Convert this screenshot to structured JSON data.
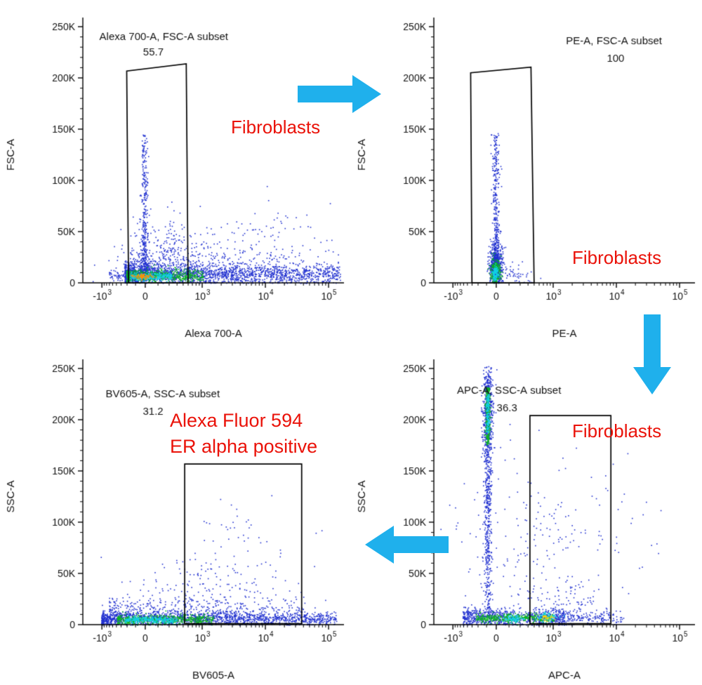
{
  "figure": {
    "background": "#ffffff",
    "arrow_color": "#1fb0ec",
    "annotation_color": "#ea1209",
    "axis_color": "#000000",
    "text_color": "#111111",
    "density_palette": {
      "low": "#2030cf",
      "mid": "#0cb41e",
      "high": "#12cfe6",
      "peak": "#ff9000",
      "max": "#ffd800"
    }
  },
  "annotations": {
    "fibroblasts_1": "Fibroblasts",
    "fibroblasts_2": "Fibroblasts",
    "fibroblasts_3": "Fibroblasts",
    "er_line1": "Alexa Fluor 594",
    "er_line2": "ER alpha positive"
  },
  "chart_data": [
    {
      "type": "scatter",
      "name": "alexa700-vs-fsc",
      "xlabel": "Alexa 700-A",
      "ylabel": "FSC-A",
      "x_scale": "biexponential",
      "y_scale": "linear",
      "x_ticks": [
        {
          "label": "-10^3",
          "pos": 0.073
        },
        {
          "label": "0",
          "pos": 0.239
        },
        {
          "label": "10^3",
          "pos": 0.457
        },
        {
          "label": "10^4",
          "pos": 0.699
        },
        {
          "label": "10^5",
          "pos": 0.941
        }
      ],
      "y_ticks": [
        {
          "label": "0",
          "value": 0
        },
        {
          "label": "50K",
          "value": 50000
        },
        {
          "label": "100K",
          "value": 100000
        },
        {
          "label": "150K",
          "value": 150000
        },
        {
          "label": "200K",
          "value": 200000
        },
        {
          "label": "250K",
          "value": 250000
        }
      ],
      "y_max": 250000,
      "gate": {
        "label": "Alexa 700-A, FSC-A subset",
        "percent": "55.7",
        "polygon": [
          [
            0.175,
            0.0
          ],
          [
            0.168,
            0.827
          ],
          [
            0.396,
            0.855
          ],
          [
            0.403,
            0.0
          ]
        ],
        "label_anchor": [
          0.31,
          0.948
        ],
        "percent_anchor": [
          0.27,
          0.888
        ]
      },
      "populations": [
        {
          "desc": "autofluorescence streak at x~0 up to ~140K FSC",
          "kind": "vstreak",
          "cx": 0.235,
          "sx": 0.006,
          "y0": 0.03,
          "y1": 0.58,
          "skew": 2.2,
          "n": 420,
          "color": "#2030cf"
        },
        {
          "desc": "diffuse low-mid cloud",
          "kind": "gauss",
          "cx": 0.33,
          "cy": 0.12,
          "sx": 0.1,
          "sy": 0.07,
          "n": 260,
          "color": "#2030cf"
        },
        {
          "desc": "main debris band along FSC~10K across full Alexa700 range",
          "kind": "hband",
          "x0": 0.16,
          "x1": 1.0,
          "cy": 0.035,
          "sy": 0.02,
          "skew": 1.7,
          "n": 1900,
          "color": "#2030cf"
        },
        {
          "desc": "band halo",
          "kind": "hband",
          "x0": 0.18,
          "x1": 0.85,
          "cy": 0.075,
          "sy": 0.035,
          "skew": 1.5,
          "n": 300,
          "color": "#2030cf"
        },
        {
          "desc": "sparse right-side scatter",
          "kind": "gauss",
          "cx": 0.72,
          "cy": 0.13,
          "sx": 0.16,
          "sy": 0.09,
          "n": 140,
          "color": "#2030cf"
        },
        {
          "desc": "left shoulder of band",
          "kind": "hband",
          "x0": 0.1,
          "x1": 0.18,
          "cy": 0.03,
          "sy": 0.015,
          "skew": 1.0,
          "n": 60,
          "color": "#2030cf"
        },
        {
          "desc": "dense green core of band",
          "kind": "hband",
          "x0": 0.165,
          "x1": 0.46,
          "cy": 0.03,
          "sy": 0.013,
          "skew": 1.3,
          "n": 520,
          "color": "#0cb41e"
        },
        {
          "desc": "cyan hotspot",
          "kind": "hband",
          "x0": 0.18,
          "x1": 0.34,
          "cy": 0.028,
          "sy": 0.008,
          "skew": 1.2,
          "n": 260,
          "color": "#12cfe6"
        },
        {
          "desc": "hottest density core near origin",
          "kind": "gauss",
          "cx": 0.225,
          "cy": 0.027,
          "sx": 0.018,
          "sy": 0.005,
          "n": 80,
          "color": "#ff9000"
        }
      ]
    },
    {
      "type": "scatter",
      "name": "pe-vs-fsc",
      "xlabel": "PE-A",
      "ylabel": "FSC-A",
      "x_scale": "biexponential",
      "y_scale": "linear",
      "x_ticks": [
        {
          "label": "-10^3",
          "pos": 0.073
        },
        {
          "label": "0",
          "pos": 0.239
        },
        {
          "label": "10^3",
          "pos": 0.457
        },
        {
          "label": "10^4",
          "pos": 0.699
        },
        {
          "label": "10^5",
          "pos": 0.941
        }
      ],
      "y_ticks": [
        {
          "label": "0",
          "value": 0
        },
        {
          "label": "50K",
          "value": 50000
        },
        {
          "label": "100K",
          "value": 100000
        },
        {
          "label": "150K",
          "value": 150000
        },
        {
          "label": "200K",
          "value": 200000
        },
        {
          "label": "250K",
          "value": 250000
        }
      ],
      "y_max": 250000,
      "gate": {
        "label": "PE-A, FSC-A subset",
        "percent": "100",
        "polygon": [
          [
            0.146,
            0.0
          ],
          [
            0.141,
            0.82
          ],
          [
            0.372,
            0.842
          ],
          [
            0.384,
            0.0
          ]
        ],
        "label_anchor": [
          0.69,
          0.932
        ],
        "percent_anchor": [
          0.696,
          0.862
        ]
      },
      "populations": [
        {
          "desc": "PE-negative streak at x~0 up to ~140K FSC",
          "kind": "vstreak",
          "cx": 0.235,
          "sx": 0.0065,
          "y0": 0.06,
          "y1": 0.58,
          "skew": 2.0,
          "n": 330,
          "color": "#2030cf"
        },
        {
          "desc": "main compact blob near origin",
          "kind": "gauss",
          "cx": 0.236,
          "cy": 0.07,
          "sx": 0.013,
          "sy": 0.045,
          "n": 520,
          "color": "#2030cf"
        },
        {
          "desc": "green core of blob",
          "kind": "gauss",
          "cx": 0.234,
          "cy": 0.045,
          "sx": 0.009,
          "sy": 0.022,
          "n": 300,
          "color": "#0cb41e"
        },
        {
          "desc": "cyan hotspot of blob",
          "kind": "gauss",
          "cx": 0.234,
          "cy": 0.038,
          "sx": 0.0055,
          "sy": 0.012,
          "n": 150,
          "color": "#12cfe6"
        },
        {
          "desc": "slight PE spillover at low FSC",
          "kind": "gauss",
          "cx": 0.3,
          "cy": 0.035,
          "sx": 0.045,
          "sy": 0.025,
          "n": 60,
          "color": "#2030cf"
        },
        {
          "desc": "rare high-FSC events",
          "kind": "vstreak",
          "cx": 0.237,
          "sx": 0.008,
          "y0": 0.35,
          "y1": 0.6,
          "skew": 1.0,
          "n": 40,
          "color": "#2030cf"
        }
      ]
    },
    {
      "type": "scatter",
      "name": "bv605-vs-ssc",
      "xlabel": "BV605-A",
      "ylabel": "SSC-A",
      "x_scale": "biexponential",
      "y_scale": "linear",
      "x_ticks": [
        {
          "label": "-10^3",
          "pos": 0.073
        },
        {
          "label": "0",
          "pos": 0.239
        },
        {
          "label": "10^3",
          "pos": 0.457
        },
        {
          "label": "10^4",
          "pos": 0.699
        },
        {
          "label": "10^5",
          "pos": 0.941
        }
      ],
      "y_ticks": [
        {
          "label": "0",
          "value": 0
        },
        {
          "label": "50K",
          "value": 50000
        },
        {
          "label": "100K",
          "value": 100000
        },
        {
          "label": "150K",
          "value": 150000
        },
        {
          "label": "200K",
          "value": 200000
        },
        {
          "label": "250K",
          "value": 250000
        }
      ],
      "y_max": 250000,
      "gate": {
        "label": "BV605-A, SSC-A subset",
        "percent": "31.2",
        "polygon": [
          [
            0.39,
            0.004
          ],
          [
            0.39,
            0.627
          ],
          [
            0.838,
            0.627
          ],
          [
            0.838,
            0.004
          ]
        ],
        "label_anchor": [
          0.306,
          0.888
        ],
        "percent_anchor": [
          0.269,
          0.818
        ]
      },
      "populations": [
        {
          "desc": "low-SSC band across full BV605 range",
          "kind": "hband",
          "x0": 0.07,
          "x1": 0.97,
          "cy": 0.025,
          "sy": 0.014,
          "skew": 1.35,
          "n": 1500,
          "color": "#2030cf"
        },
        {
          "desc": "band halo",
          "kind": "hband",
          "x0": 0.1,
          "x1": 0.85,
          "cy": 0.06,
          "sy": 0.03,
          "skew": 1.4,
          "n": 420,
          "color": "#2030cf"
        },
        {
          "desc": "green dense stretch of band",
          "kind": "hband",
          "x0": 0.13,
          "x1": 0.5,
          "cy": 0.022,
          "sy": 0.01,
          "skew": 1.15,
          "n": 520,
          "color": "#0cb41e"
        },
        {
          "desc": "cyan hotspot of band",
          "kind": "hband",
          "x0": 0.16,
          "x1": 0.36,
          "cy": 0.02,
          "sy": 0.006,
          "skew": 1.1,
          "n": 240,
          "color": "#12cfe6"
        },
        {
          "desc": "sparse events above band",
          "kind": "gauss",
          "cx": 0.5,
          "cy": 0.16,
          "sx": 0.16,
          "sy": 0.09,
          "n": 150,
          "color": "#2030cf"
        },
        {
          "desc": "rare in-gate higher-SSC events",
          "kind": "gauss",
          "cx": 0.6,
          "cy": 0.3,
          "sx": 0.1,
          "sy": 0.12,
          "n": 40,
          "color": "#2030cf"
        }
      ]
    },
    {
      "type": "scatter",
      "name": "apc-vs-ssc",
      "xlabel": "APC-A",
      "ylabel": "SSC-A",
      "x_scale": "biexponential",
      "y_scale": "linear",
      "x_ticks": [
        {
          "label": "-10^3",
          "pos": 0.073
        },
        {
          "label": "0",
          "pos": 0.239
        },
        {
          "label": "10^3",
          "pos": 0.457
        },
        {
          "label": "10^4",
          "pos": 0.699
        },
        {
          "label": "10^5",
          "pos": 0.941
        }
      ],
      "y_ticks": [
        {
          "label": "0",
          "value": 0
        },
        {
          "label": "50K",
          "value": 50000
        },
        {
          "label": "100K",
          "value": 100000
        },
        {
          "label": "150K",
          "value": 150000
        },
        {
          "label": "200K",
          "value": 200000
        },
        {
          "label": "250K",
          "value": 250000
        }
      ],
      "y_max": 250000,
      "gate": {
        "label": "APC-A, SSC-A subset",
        "percent": "36.3",
        "polygon": [
          [
            0.368,
            0.004
          ],
          [
            0.368,
            0.816
          ],
          [
            0.678,
            0.816
          ],
          [
            0.678,
            0.004
          ]
        ],
        "label_anchor": [
          0.288,
          0.901
        ],
        "percent_anchor": [
          0.28,
          0.832
        ]
      },
      "populations": [
        {
          "desc": "APC-negative vertical streak spanning full SSC range",
          "kind": "vstreak",
          "cx": 0.205,
          "sx": 0.008,
          "y0": 0.03,
          "y1": 0.97,
          "skew": 0.8,
          "n": 650,
          "color": "#2030cf"
        },
        {
          "desc": "dense top cluster of streak ~200K SSC",
          "kind": "gauss",
          "cx": 0.206,
          "cy": 0.84,
          "sx": 0.011,
          "sy": 0.09,
          "n": 320,
          "color": "#2030cf"
        },
        {
          "desc": "green segment at top of streak",
          "kind": "vstreak",
          "cx": 0.205,
          "sx": 0.0045,
          "y0": 0.7,
          "y1": 0.93,
          "skew": 0.9,
          "n": 260,
          "color": "#0cb41e"
        },
        {
          "desc": "cyan segment at top of streak",
          "kind": "vstreak",
          "cx": 0.205,
          "sx": 0.003,
          "y0": 0.75,
          "y1": 0.9,
          "skew": 1.0,
          "n": 130,
          "color": "#12cfe6"
        },
        {
          "desc": "low-SSC band",
          "kind": "hband",
          "x0": 0.11,
          "x1": 0.5,
          "cy": 0.03,
          "sy": 0.018,
          "skew": 1.2,
          "n": 750,
          "color": "#2030cf"
        },
        {
          "desc": "green dense stretch of band",
          "kind": "hband",
          "x0": 0.16,
          "x1": 0.46,
          "cy": 0.027,
          "sy": 0.01,
          "skew": 1.05,
          "n": 360,
          "color": "#0cb41e"
        },
        {
          "desc": "cyan hotspot left",
          "kind": "gauss",
          "cx": 0.3,
          "cy": 0.026,
          "sx": 0.02,
          "sy": 0.007,
          "n": 80,
          "color": "#12cfe6"
        },
        {
          "desc": "cyan hotspot right",
          "kind": "gauss",
          "cx": 0.43,
          "cy": 0.03,
          "sx": 0.025,
          "sy": 0.008,
          "n": 90,
          "color": "#12cfe6"
        },
        {
          "desc": "hottest spot of band",
          "kind": "gauss",
          "cx": 0.43,
          "cy": 0.028,
          "sx": 0.012,
          "sy": 0.006,
          "n": 35,
          "color": "#ffd800"
        },
        {
          "desc": "band sparse right tail into gate",
          "kind": "hband",
          "x0": 0.46,
          "x1": 0.72,
          "cy": 0.03,
          "sy": 0.015,
          "skew": 1.0,
          "n": 160,
          "color": "#2030cf"
        },
        {
          "desc": "scattered mid-field events",
          "kind": "gauss",
          "cx": 0.42,
          "cy": 0.3,
          "sx": 0.17,
          "sy": 0.17,
          "n": 230,
          "color": "#2030cf"
        },
        {
          "desc": "sparse low in-gate events",
          "kind": "gauss",
          "cx": 0.5,
          "cy": 0.08,
          "sx": 0.08,
          "sy": 0.05,
          "n": 80,
          "color": "#2030cf"
        }
      ]
    }
  ]
}
